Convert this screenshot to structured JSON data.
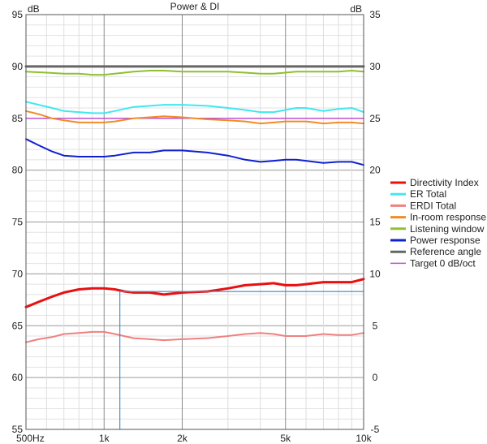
{
  "chart_data": {
    "type": "line",
    "title": "Power & DI",
    "left_axis": {
      "unit": "dB",
      "ylim": [
        55,
        95
      ],
      "ticks": [
        55,
        60,
        65,
        70,
        75,
        80,
        85,
        90,
        95
      ]
    },
    "right_axis": {
      "unit": "dB",
      "ylim": [
        -5,
        35
      ],
      "ticks": [
        -5,
        0,
        5,
        10,
        15,
        20,
        25,
        30,
        35
      ]
    },
    "x_axis": {
      "scale": "log",
      "xlim": [
        500,
        10000
      ],
      "tick_values": [
        500,
        1000,
        2000,
        5000,
        10000
      ],
      "tick_labels": [
        "500Hz",
        "1k",
        "2k",
        "5k",
        "10k"
      ]
    },
    "grid": true,
    "legend": "right",
    "cursor": {
      "x": 1150,
      "value": 8.3,
      "axis": "right"
    },
    "series": [
      {
        "name": "Directivity Index",
        "axis": "right",
        "color": "#e81010",
        "width": 3,
        "x": [
          500,
          560,
          630,
          700,
          800,
          900,
          1000,
          1100,
          1200,
          1300,
          1500,
          1700,
          2000,
          2500,
          3000,
          3500,
          4000,
          4500,
          5000,
          5500,
          6000,
          7000,
          8000,
          9000,
          10000
        ],
        "y": [
          6.8,
          7.3,
          7.8,
          8.2,
          8.5,
          8.6,
          8.6,
          8.5,
          8.3,
          8.2,
          8.2,
          8.0,
          8.2,
          8.3,
          8.6,
          8.9,
          9.0,
          9.1,
          8.9,
          8.9,
          9.0,
          9.2,
          9.2,
          9.2,
          9.5
        ]
      },
      {
        "name": "ER Total",
        "axis": "left",
        "color": "#40e8f0",
        "width": 2,
        "x": [
          500,
          560,
          630,
          700,
          800,
          900,
          1000,
          1100,
          1300,
          1500,
          1700,
          2000,
          2500,
          3000,
          3500,
          4000,
          4500,
          5000,
          5500,
          6000,
          7000,
          8000,
          9000,
          10000
        ],
        "y": [
          86.6,
          86.3,
          86.0,
          85.7,
          85.6,
          85.5,
          85.5,
          85.7,
          86.1,
          86.2,
          86.3,
          86.3,
          86.2,
          86.0,
          85.8,
          85.6,
          85.6,
          85.8,
          86.0,
          86.0,
          85.7,
          85.9,
          86.0,
          85.6
        ]
      },
      {
        "name": "ERDI Total",
        "axis": "right",
        "color": "#f08080",
        "width": 2,
        "x": [
          500,
          560,
          630,
          700,
          800,
          900,
          1000,
          1100,
          1300,
          1500,
          1700,
          2000,
          2500,
          3000,
          3500,
          4000,
          4500,
          5000,
          5500,
          6000,
          7000,
          8000,
          9000,
          10000
        ],
        "y": [
          3.4,
          3.7,
          3.9,
          4.2,
          4.3,
          4.4,
          4.4,
          4.2,
          3.8,
          3.7,
          3.6,
          3.7,
          3.8,
          4.0,
          4.2,
          4.3,
          4.2,
          4.0,
          4.0,
          4.0,
          4.2,
          4.1,
          4.1,
          4.3
        ]
      },
      {
        "name": "In-room response",
        "axis": "left",
        "color": "#f08c28",
        "width": 2,
        "x": [
          500,
          560,
          630,
          700,
          800,
          900,
          1000,
          1100,
          1300,
          1500,
          1700,
          2000,
          2500,
          3000,
          3500,
          4000,
          4500,
          5000,
          5500,
          6000,
          7000,
          8000,
          9000,
          10000
        ],
        "y": [
          85.7,
          85.4,
          85.0,
          84.8,
          84.6,
          84.6,
          84.6,
          84.7,
          85.0,
          85.1,
          85.2,
          85.1,
          84.9,
          84.8,
          84.7,
          84.5,
          84.6,
          84.7,
          84.7,
          84.7,
          84.5,
          84.6,
          84.6,
          84.5
        ]
      },
      {
        "name": "Listening window",
        "axis": "left",
        "color": "#90c030",
        "width": 2,
        "x": [
          500,
          600,
          700,
          800,
          900,
          1000,
          1100,
          1300,
          1500,
          1700,
          2000,
          2500,
          3000,
          3500,
          4000,
          4500,
          5000,
          5500,
          6000,
          7000,
          8000,
          9000,
          10000
        ],
        "y": [
          89.5,
          89.4,
          89.3,
          89.3,
          89.2,
          89.2,
          89.3,
          89.5,
          89.6,
          89.6,
          89.5,
          89.5,
          89.5,
          89.4,
          89.3,
          89.3,
          89.4,
          89.5,
          89.5,
          89.5,
          89.5,
          89.6,
          89.5
        ]
      },
      {
        "name": "Power response",
        "axis": "left",
        "color": "#1020d0",
        "width": 2,
        "x": [
          500,
          560,
          630,
          700,
          800,
          900,
          1000,
          1100,
          1300,
          1500,
          1700,
          2000,
          2500,
          3000,
          3500,
          4000,
          4500,
          5000,
          5500,
          6000,
          7000,
          8000,
          9000,
          10000
        ],
        "y": [
          83.0,
          82.4,
          81.8,
          81.4,
          81.3,
          81.3,
          81.3,
          81.4,
          81.7,
          81.7,
          81.9,
          81.9,
          81.7,
          81.4,
          81.0,
          80.8,
          80.9,
          81.0,
          81.0,
          80.9,
          80.7,
          80.8,
          80.8,
          80.5
        ]
      },
      {
        "name": "Reference angle",
        "axis": "left",
        "color": "#666666",
        "width": 3,
        "x": [
          500,
          10000
        ],
        "y": [
          90.0,
          90.0
        ]
      },
      {
        "name": "Target 0 dB/oct",
        "axis": "left",
        "color": "#c050d0",
        "width": 1.5,
        "x": [
          500,
          10000
        ],
        "y": [
          85.0,
          85.0
        ]
      }
    ]
  }
}
